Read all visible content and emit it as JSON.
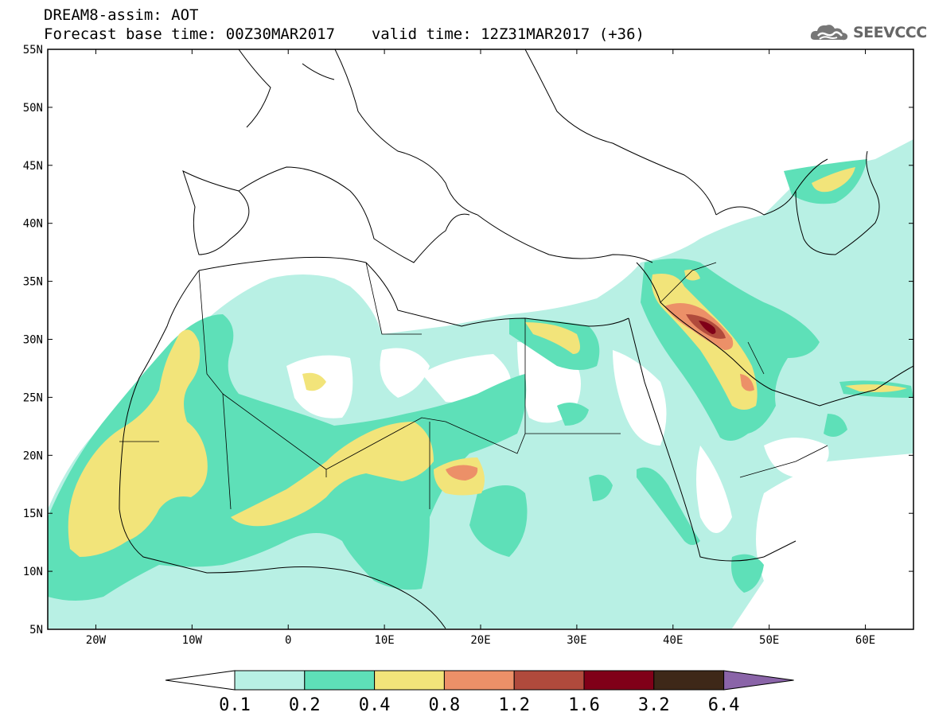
{
  "header": {
    "title": "DREAM8-assim: AOT",
    "base_time": "Forecast base time: 00Z30MAR2017",
    "valid_time": "valid time: 12Z31MAR2017 (+36)",
    "logo_text": "SEEVCCC"
  },
  "map": {
    "lon_range": [
      -25,
      65
    ],
    "lat_range": [
      5,
      55
    ],
    "lat_labels": [
      "5N",
      "10N",
      "15N",
      "20N",
      "25N",
      "30N",
      "35N",
      "40N",
      "45N",
      "50N",
      "55N"
    ],
    "lon_labels": [
      "20W",
      "10W",
      "0",
      "10E",
      "20E",
      "30E",
      "40E",
      "50E",
      "60E"
    ],
    "lat_values": [
      5,
      10,
      15,
      20,
      25,
      30,
      35,
      40,
      45,
      50,
      55
    ],
    "lon_values": [
      -20,
      -10,
      0,
      10,
      20,
      30,
      40,
      50,
      60
    ]
  },
  "colorbar": {
    "labels": [
      "0.1",
      "0.2",
      "0.4",
      "0.8",
      "1.2",
      "1.6",
      "3.2",
      "6.4"
    ],
    "colors": [
      "#ffffff",
      "#b8f0e4",
      "#5ee0b8",
      "#f2e47a",
      "#ec9068",
      "#b04a3c",
      "#800018",
      "#3e2818",
      "#8a64a8"
    ]
  }
}
